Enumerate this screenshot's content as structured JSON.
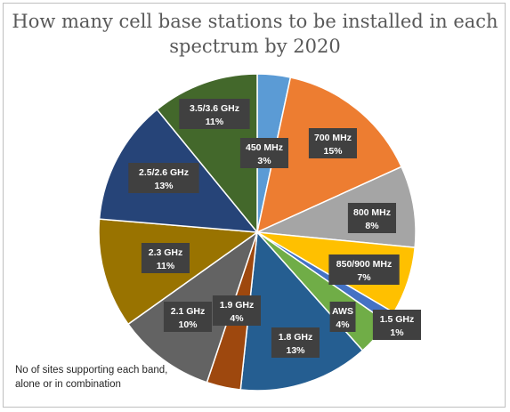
{
  "chart_data": {
    "type": "pie",
    "title": "How many cell base stations to be installed in each spectrum by 2020",
    "footnote": "No of sites supporting each band, alone or in combination",
    "slices": [
      {
        "label": "450 MHz",
        "percent_label": "3%",
        "value": 3.4,
        "color": "#5b9bd5"
      },
      {
        "label": "700 MHz",
        "percent_label": "15%",
        "value": 15,
        "color": "#ed7d31"
      },
      {
        "label": "800 MHz",
        "percent_label": "8%",
        "value": 8.4,
        "color": "#a5a5a5"
      },
      {
        "label": "850/900 MHz",
        "percent_label": "7%",
        "value": 7,
        "color": "#ffc000"
      },
      {
        "label": "1.5 GHz",
        "percent_label": "1%",
        "value": 1.2,
        "color": "#4472c4"
      },
      {
        "label": "AWS",
        "percent_label": "4%",
        "value": 3.8,
        "color": "#70ad47"
      },
      {
        "label": "1.8 GHz",
        "percent_label": "13%",
        "value": 13.4,
        "color": "#255e91"
      },
      {
        "label": "1.9 GHz",
        "percent_label": "4%",
        "value": 3.5,
        "color": "#9e480e"
      },
      {
        "label": "2.1 GHz",
        "percent_label": "10%",
        "value": 10.1,
        "color": "#636363"
      },
      {
        "label": "2.3 GHz",
        "percent_label": "11%",
        "value": 11.3,
        "color": "#997300"
      },
      {
        "label": "2.5/2.6 GHz",
        "percent_label": "13%",
        "value": 12.9,
        "color": "#264478"
      },
      {
        "label": "3.5/3.6 GHz",
        "percent_label": "11%",
        "value": 11,
        "color": "#43682b"
      }
    ],
    "label_style": {
      "box_color": "#404040",
      "text_color": "#ffffff"
    }
  }
}
